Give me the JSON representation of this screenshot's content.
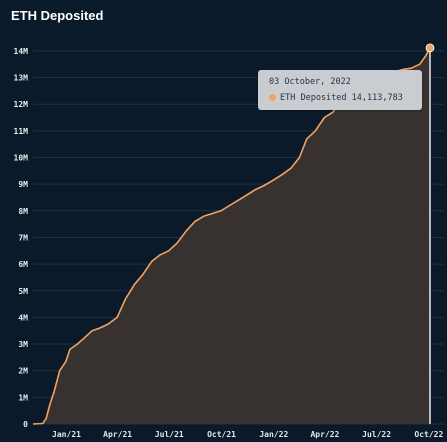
{
  "chart_data": {
    "type": "area",
    "title": "ETH Deposited",
    "xlabel": "",
    "ylabel": "",
    "x_ticks": [
      "Jan/21",
      "Apr/21",
      "Jul/21",
      "Oct/21",
      "Jan/22",
      "Apr/22",
      "Jul/22",
      "Oct/22"
    ],
    "y_ticks": [
      "0",
      "1M",
      "2M",
      "3M",
      "4M",
      "5M",
      "6M",
      "7M",
      "8M",
      "9M",
      "10M",
      "11M",
      "12M",
      "13M",
      "14M"
    ],
    "x_range": [
      "2020-11-03",
      "2022-10-03"
    ],
    "ylim": [
      0,
      14500000
    ],
    "grid": true,
    "colors": {
      "line": "#f4a261",
      "fill": "#3a342f",
      "grid": "#1f3140",
      "cursor": "#e8eaed"
    },
    "series": [
      {
        "x": [
          "2020-11-03",
          "2020-11-20",
          "2020-11-26",
          "2020-12-03",
          "2020-12-10",
          "2020-12-20",
          "2020-12-31",
          "2021-01-07",
          "2021-01-20",
          "2021-01-31",
          "2021-02-15",
          "2021-02-28",
          "2021-03-15",
          "2021-03-31",
          "2021-04-15",
          "2021-05-01",
          "2021-05-15",
          "2021-05-31",
          "2021-06-15",
          "2021-06-30",
          "2021-07-15",
          "2021-07-31",
          "2021-08-15",
          "2021-08-31",
          "2021-09-15",
          "2021-09-30",
          "2021-10-15",
          "2021-10-31",
          "2021-11-15",
          "2021-11-30",
          "2021-12-15",
          "2021-12-31",
          "2022-01-15",
          "2022-01-31",
          "2022-02-15",
          "2022-02-28",
          "2022-03-15",
          "2022-03-31",
          "2022-04-15",
          "2022-04-30",
          "2022-05-15",
          "2022-05-31",
          "2022-06-15",
          "2022-06-30",
          "2022-07-15",
          "2022-07-31",
          "2022-08-15",
          "2022-08-31",
          "2022-09-15",
          "2022-09-25",
          "2022-10-03"
        ],
        "y": [
          0,
          20000,
          200000,
          750000,
          1200000,
          2000000,
          2350000,
          2800000,
          3000000,
          3200000,
          3500000,
          3600000,
          3750000,
          4000000,
          4700000,
          5250000,
          5600000,
          6100000,
          6350000,
          6500000,
          6800000,
          7250000,
          7600000,
          7800000,
          7900000,
          8000000,
          8200000,
          8400000,
          8600000,
          8800000,
          8950000,
          9150000,
          9350000,
          9600000,
          10000000,
          10700000,
          11000000,
          11500000,
          11700000,
          12200000,
          12400000,
          12600000,
          12700000,
          12900000,
          13000000,
          13200000,
          13300000,
          13350000,
          13500000,
          13800000,
          14113783
        ]
      }
    ]
  },
  "tooltip": {
    "date": "03 October, 2022",
    "label": "ETH Deposited",
    "value": "14,113,783"
  }
}
